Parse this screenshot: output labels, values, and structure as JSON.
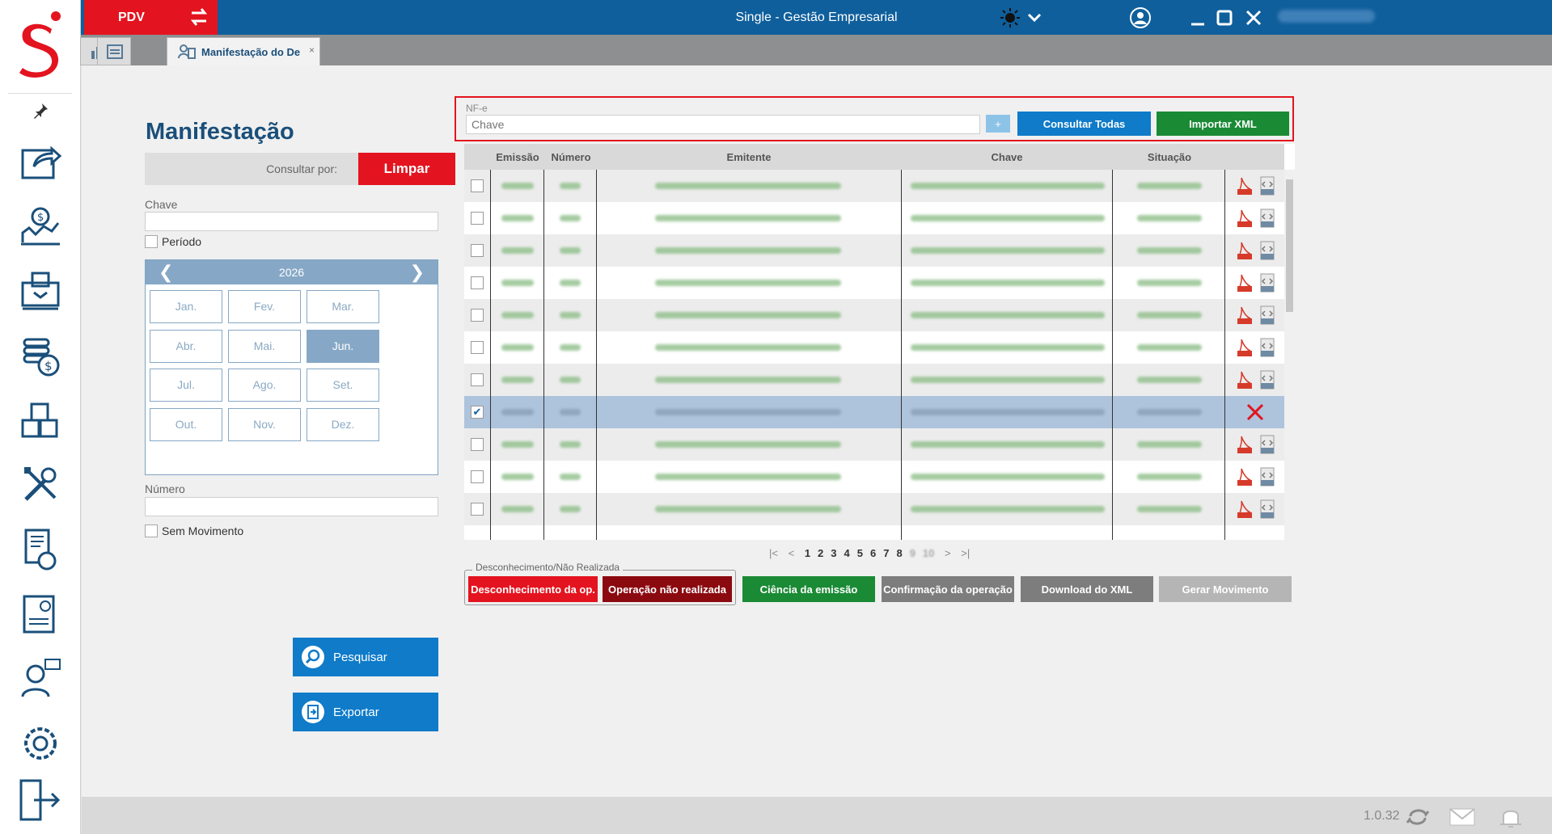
{
  "titlebar": {
    "pdv_label": "PDV",
    "app_title": "Single - Gestão Empresarial"
  },
  "tabs": [
    {
      "name": "dashboard"
    },
    {
      "name": "list"
    },
    {
      "label": "Manifestação do De",
      "close": "×"
    }
  ],
  "left_panel": {
    "title": "Manifestação",
    "consultar_por_label": "Consultar por:",
    "limpar_label": "Limpar",
    "chave_label": "Chave",
    "periodo_label": "Período",
    "numero_label": "Número",
    "sem_movimento_label": "Sem Movimento",
    "pesquisar_label": "Pesquisar",
    "exportar_label": "Exportar"
  },
  "calendar": {
    "year": "2026",
    "prev": "❮",
    "next": "❯",
    "months": [
      "Jan.",
      "Fev.",
      "Mar.",
      "Abr.",
      "Mai.",
      "Jun.",
      "Jul.",
      "Ago.",
      "Set.",
      "Out.",
      "Nov.",
      "Dez."
    ],
    "selected_index": 5
  },
  "nfe": {
    "group_label": "NF-e",
    "chave_placeholder": "Chave",
    "plus_label": "+",
    "consultar_todas_label": "Consultar Todas",
    "importar_xml_label": "Importar XML"
  },
  "grid": {
    "columns": [
      "Emissão",
      "Número",
      "Emitente",
      "Chave",
      "Situação"
    ],
    "rows": [
      {
        "checked": false,
        "actions": "pdf-xml"
      },
      {
        "checked": false,
        "actions": "pdf-xml"
      },
      {
        "checked": false,
        "actions": "pdf-xml"
      },
      {
        "checked": false,
        "actions": "pdf-xml"
      },
      {
        "checked": false,
        "actions": "pdf-xml"
      },
      {
        "checked": false,
        "actions": "pdf-xml"
      },
      {
        "checked": false,
        "actions": "pdf-xml"
      },
      {
        "checked": true,
        "actions": "cancel"
      },
      {
        "checked": false,
        "actions": "pdf-xml"
      },
      {
        "checked": false,
        "actions": "pdf-xml"
      },
      {
        "checked": false,
        "actions": "pdf-xml"
      }
    ],
    "check_mark": "✔"
  },
  "pager": {
    "first": "|<",
    "prev": "<",
    "pages": [
      "1",
      "2",
      "3",
      "4",
      "5",
      "6",
      "7",
      "8",
      "9",
      "10"
    ],
    "current": "1",
    "next": ">",
    "last": ">|"
  },
  "actions": {
    "group_legend": "Desconhecimento/Não Realizada",
    "desconhecimento_label": "Desconhecimento da op.",
    "nao_realizada_label": "Operação não realizada",
    "ciencia_label": "Ciência da emissão",
    "confirmacao_label": "Confirmação da operação",
    "download_label": "Download do XML",
    "gerar_label": "Gerar Movimento"
  },
  "status": {
    "version": "1.0.32"
  },
  "colors": {
    "brand_blue": "#0f5f9c",
    "action_blue": "#0f7bc9",
    "red": "#e3141f",
    "dark_red": "#8b0a10",
    "green": "#1b8a35",
    "gray": "#7d7d7d"
  }
}
